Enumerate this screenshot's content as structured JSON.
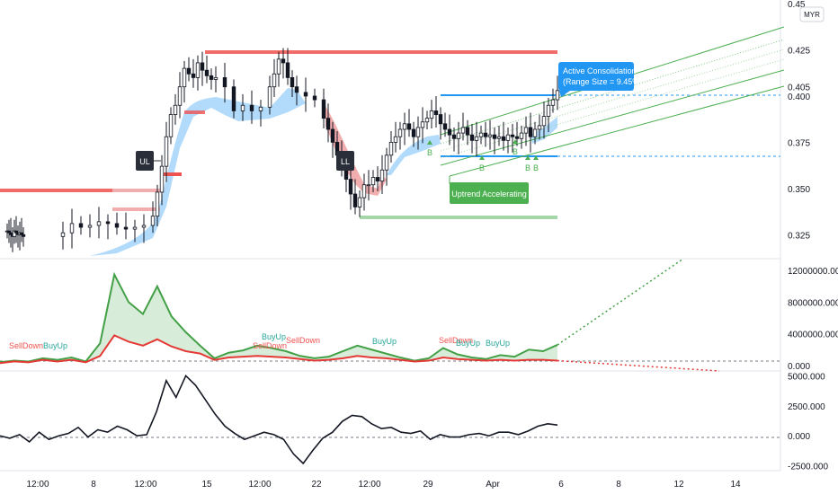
{
  "chart_data": [
    {
      "type": "candlestick",
      "title": "",
      "currency_badge": "MYR",
      "ylim": [
        0.312,
        0.452
      ],
      "y_ticks": [
        "0.45",
        "0.425",
        "0.400",
        "0.375",
        "0.350",
        "0.325"
      ],
      "y_tick_values": [
        0.45,
        0.425,
        0.4,
        0.375,
        0.35,
        0.325
      ],
      "current_price_label": "0.405",
      "current_price": 0.405,
      "x_ticks": [
        "12:00",
        "8",
        "12:00",
        "15",
        "12:00",
        "22",
        "12:00",
        "29",
        "Apr",
        "6",
        "8",
        "12",
        "14"
      ],
      "consolidation": {
        "title": "Active Consolidation",
        "range_text": "(Range Size = 9.45%)",
        "top": 0.405,
        "bottom": 0.37
      },
      "resistance_level": 0.43,
      "support_level": 0.336,
      "labels": [
        {
          "text": "UL",
          "kind": "box"
        },
        {
          "text": "LL",
          "kind": "box"
        },
        {
          "text": "Uptrend Accelerating",
          "kind": "green-box"
        }
      ],
      "b_markers": [
        "B",
        "B",
        "B",
        "B",
        "B"
      ],
      "colors": {
        "up": "#26a69a",
        "down": "#131722",
        "band_up": "#90caf9",
        "band_down": "#ef9a9a",
        "resistance": "#ef5350",
        "consolidation": "#2196f3",
        "channel": "#4caf50",
        "callout": "#2196f3"
      }
    },
    {
      "type": "area",
      "ylim": [
        -700000,
        13500000
      ],
      "y_ticks": [
        "12000000.000",
        "8000000.000",
        "4000000.000",
        "0.000"
      ],
      "y_tick_values": [
        12000000,
        8000000,
        4000000,
        0
      ],
      "series": [
        {
          "color": "#43a047",
          "values": [
            400000,
            600000,
            500000,
            900000,
            700000,
            1000000,
            500000,
            2800000,
            11500000,
            8000000,
            6500000,
            10000000,
            6200000,
            4200000,
            2500000,
            900000,
            1600000,
            1900000,
            2500000,
            2200000,
            1800000,
            1200000,
            900000,
            1100000,
            1800000,
            2500000,
            2000000,
            1500000,
            1000000,
            600000,
            900000,
            2200000,
            1400000,
            1000000,
            800000,
            1300000,
            1100000,
            2000000,
            1800000,
            2600000
          ]
        },
        {
          "color": "#e53935",
          "values": [
            300000,
            500000,
            400000,
            700000,
            500000,
            700000,
            400000,
            1200000,
            3800000,
            3000000,
            2500000,
            3300000,
            2400000,
            1800000,
            1500000,
            700000,
            1000000,
            1100000,
            1200000,
            1100000,
            1000000,
            800000,
            600000,
            700000,
            900000,
            1200000,
            1000000,
            900000,
            700000,
            500000,
            600000,
            1000000,
            800000,
            700000,
            600000,
            700000,
            600000,
            700000,
            700000,
            600000
          ]
        }
      ],
      "projections": [
        {
          "color": "#43a047",
          "from": 2600000,
          "to": 13500000
        },
        {
          "color": "#e53935",
          "from": 600000,
          "to": -700000
        }
      ],
      "signal_labels": [
        {
          "text": "SellDown",
          "color": "#ef5350"
        },
        {
          "text": "BuyUp",
          "color": "#26a69a"
        },
        {
          "text": "BuyUp",
          "color": "#26a69a"
        },
        {
          "text": "SellDown",
          "color": "#ef5350"
        },
        {
          "text": "SellDown",
          "color": "#ef5350"
        },
        {
          "text": "BuyUp",
          "color": "#26a69a"
        },
        {
          "text": "SellDown",
          "color": "#ef5350"
        },
        {
          "text": "BuyUp",
          "color": "#26a69a"
        },
        {
          "text": "BuyUp",
          "color": "#26a69a"
        }
      ]
    },
    {
      "type": "line",
      "ylim": [
        -2900,
        5400
      ],
      "y_ticks": [
        "5000.000",
        "2500.000",
        "0.000",
        "-2500.000"
      ],
      "y_tick_values": [
        5000,
        2500,
        0,
        -2500
      ],
      "series": [
        {
          "color": "#131722",
          "values": [
            0,
            -200,
            100,
            -500,
            300,
            -300,
            0,
            200,
            700,
            -100,
            500,
            300,
            800,
            500,
            0,
            100,
            2000,
            4600,
            3200,
            5000,
            4200,
            3000,
            1800,
            800,
            200,
            -300,
            0,
            300,
            100,
            -300,
            -1500,
            -2300,
            -1200,
            -200,
            300,
            1200,
            1700,
            1600,
            1000,
            600,
            700,
            300,
            200,
            400,
            -300,
            100,
            -100,
            -100,
            100,
            200,
            0,
            300,
            300,
            100,
            400,
            800,
            1000,
            900
          ]
        }
      ]
    }
  ]
}
